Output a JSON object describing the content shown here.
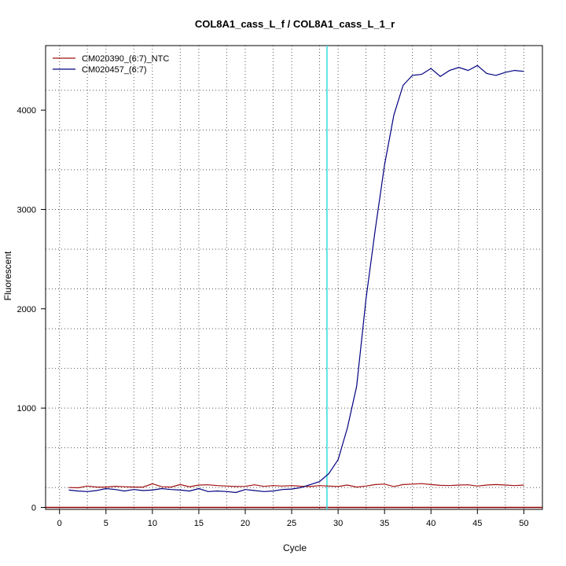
{
  "chart_data": {
    "type": "line",
    "title": "COL8A1_cass_L_f / COL8A1_cass_L_1_r",
    "xlabel": "Cycle",
    "ylabel": "Fluorescent",
    "xlim": [
      -1.5,
      52
    ],
    "ylim": [
      -20,
      4650
    ],
    "x_ticks": [
      0,
      5,
      10,
      15,
      20,
      25,
      30,
      35,
      40,
      45,
      50
    ],
    "y_ticks": [
      0,
      1000,
      2000,
      3000,
      4000
    ],
    "x_minor_grid": [
      3,
      8,
      13,
      18,
      23,
      28,
      33,
      38,
      43,
      48
    ],
    "y_minor_grid": [
      200,
      600,
      1000,
      1400,
      1800,
      2200,
      2600,
      3000,
      3400,
      3800,
      4200
    ],
    "threshold": {
      "x": 28.8,
      "color": "#33dddd"
    },
    "baseline": {
      "y": 0,
      "color": "#8b0000"
    },
    "grid": true,
    "legend_position": "top-left",
    "series": [
      {
        "name": "CM020390_(6:7)_NTC",
        "color": "#a01010",
        "x": [
          1,
          2,
          3,
          4,
          5,
          6,
          7,
          8,
          9,
          10,
          11,
          12,
          13,
          14,
          15,
          16,
          17,
          18,
          19,
          20,
          21,
          22,
          23,
          24,
          25,
          26,
          27,
          28,
          29,
          30,
          31,
          32,
          33,
          34,
          35,
          36,
          37,
          38,
          39,
          40,
          41,
          42,
          43,
          44,
          45,
          46,
          47,
          48,
          49,
          50
        ],
        "values": [
          200,
          198,
          215,
          205,
          205,
          213,
          208,
          205,
          205,
          238,
          208,
          205,
          230,
          208,
          225,
          228,
          220,
          215,
          210,
          212,
          228,
          212,
          220,
          215,
          220,
          213,
          210,
          220,
          215,
          210,
          225,
          205,
          215,
          230,
          235,
          210,
          230,
          235,
          240,
          230,
          222,
          220,
          225,
          228,
          215,
          225,
          230,
          225,
          220,
          225
        ]
      },
      {
        "name": "CM020457_(6:7)",
        "color": "#000080",
        "x": [
          1,
          2,
          3,
          4,
          5,
          6,
          7,
          8,
          9,
          10,
          11,
          12,
          13,
          14,
          15,
          16,
          17,
          18,
          19,
          20,
          21,
          22,
          23,
          24,
          25,
          26,
          27,
          28,
          29,
          30,
          31,
          32,
          33,
          34,
          35,
          36,
          37,
          38,
          39,
          40,
          41,
          42,
          43,
          44,
          45,
          46,
          47,
          48,
          49,
          50
        ],
        "values": [
          175,
          165,
          160,
          170,
          190,
          180,
          165,
          180,
          170,
          175,
          190,
          180,
          175,
          165,
          190,
          160,
          165,
          160,
          150,
          180,
          170,
          160,
          165,
          180,
          185,
          200,
          230,
          260,
          340,
          480,
          800,
          1220,
          2100,
          2800,
          3450,
          3950,
          4250,
          4350,
          4360,
          4420,
          4340,
          4400,
          4430,
          4400,
          4450,
          4370,
          4350,
          4380,
          4400,
          4390
        ]
      }
    ]
  }
}
